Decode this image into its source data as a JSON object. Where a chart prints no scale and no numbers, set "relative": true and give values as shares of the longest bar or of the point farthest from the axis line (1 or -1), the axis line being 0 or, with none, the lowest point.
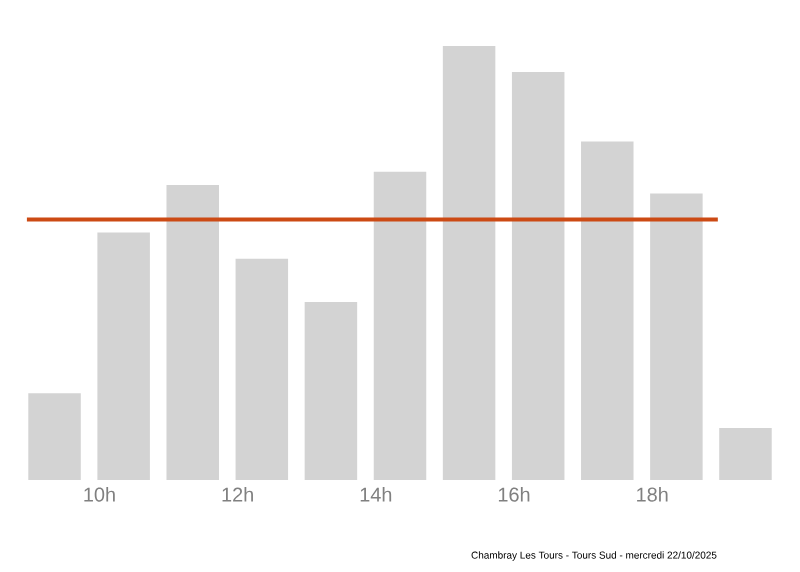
{
  "chart_data": {
    "type": "bar",
    "relative": true,
    "x": [
      9.35,
      10.35,
      11.35,
      12.35,
      13.35,
      14.35,
      15.35,
      16.35,
      17.35,
      18.35,
      19.35
    ],
    "values": [
      0.2,
      0.57,
      0.68,
      0.51,
      0.41,
      0.71,
      1,
      0.94,
      0.78,
      0.66,
      0.12
    ],
    "color": "#d3d3d3",
    "xlim": [
      8.85,
      19.85
    ],
    "xticks": [
      {
        "value": 10,
        "label": "10h"
      },
      {
        "value": 12,
        "label": "12h"
      },
      {
        "value": 14,
        "label": "14h"
      },
      {
        "value": 16,
        "label": "16h"
      },
      {
        "value": 18,
        "label": "18h"
      }
    ],
    "ref_lines": [
      {
        "axis": "y",
        "value": 0.6,
        "color": "#cc4a14"
      }
    ],
    "annotations": [
      "Chambray Les Tours - Tours Sud - mercredi 22/10/2025"
    ]
  }
}
